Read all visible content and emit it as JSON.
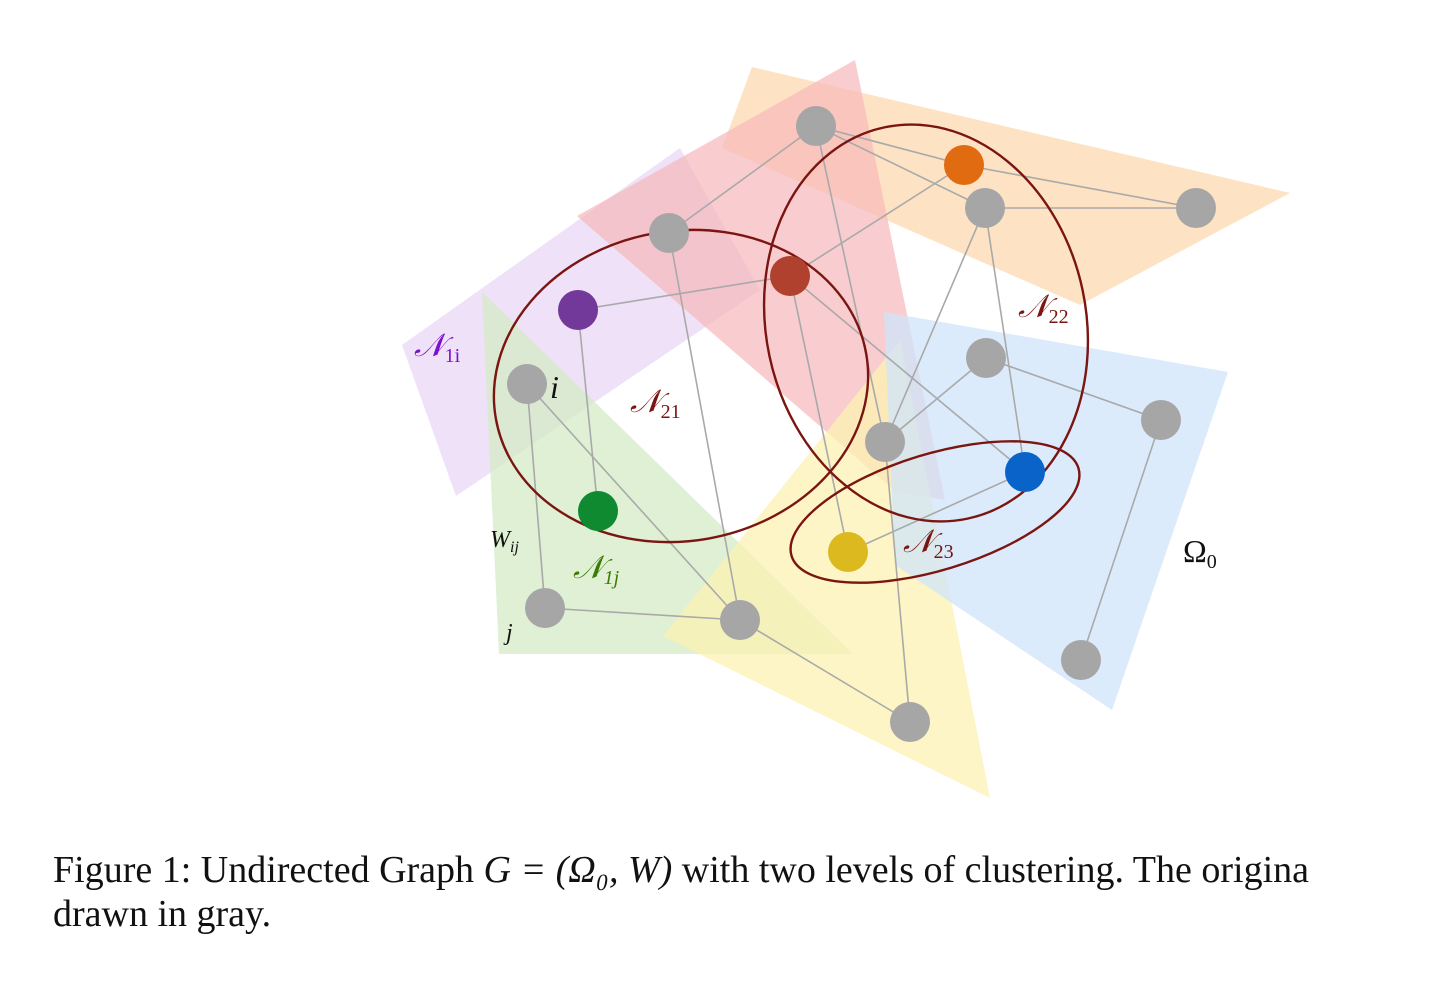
{
  "colors": {
    "region_orange": "#fcd9b0",
    "region_pink": "#f6b8bb",
    "region_purple": "#ead7f4",
    "region_green": "#d4ebc6",
    "region_yellow": "#fcf1b2",
    "region_blue": "#cfe4fa",
    "edge_gray": "#a9a9a9",
    "node_gray": "#a6a6a6",
    "cluster_ring": "#7a1512",
    "label_dark_red": "#7a1512",
    "label_purple": "#7d10d0",
    "label_green": "#3d7a06",
    "node_purple": "#72399a",
    "node_red": "#b0412e",
    "node_orange": "#e06b10",
    "node_green": "#0f8a30",
    "node_yellow": "#dcb91e",
    "node_blue": "#0a63c8"
  },
  "labels": {
    "n1i": {
      "base": "𝒩",
      "sub": "1i"
    },
    "n1j": {
      "base": "𝒩",
      "sub": "1j"
    },
    "n21": {
      "base": "𝒩",
      "sub": "21"
    },
    "n22": {
      "base": "𝒩",
      "sub": "22"
    },
    "n23": {
      "base": "𝒩",
      "sub": "23"
    },
    "omega0": {
      "base": "Ω",
      "sub": "0"
    },
    "node_i": "i",
    "node_j": "j",
    "weight": {
      "base": "W",
      "sub": "ij"
    }
  },
  "caption": {
    "line1_prefix": "Figure 1: Undirected Graph ",
    "line1_math": "G = (Ω₀, W)",
    "line1_suffix": " with two levels of clustering.  The origina",
    "line2": "drawn in gray."
  }
}
